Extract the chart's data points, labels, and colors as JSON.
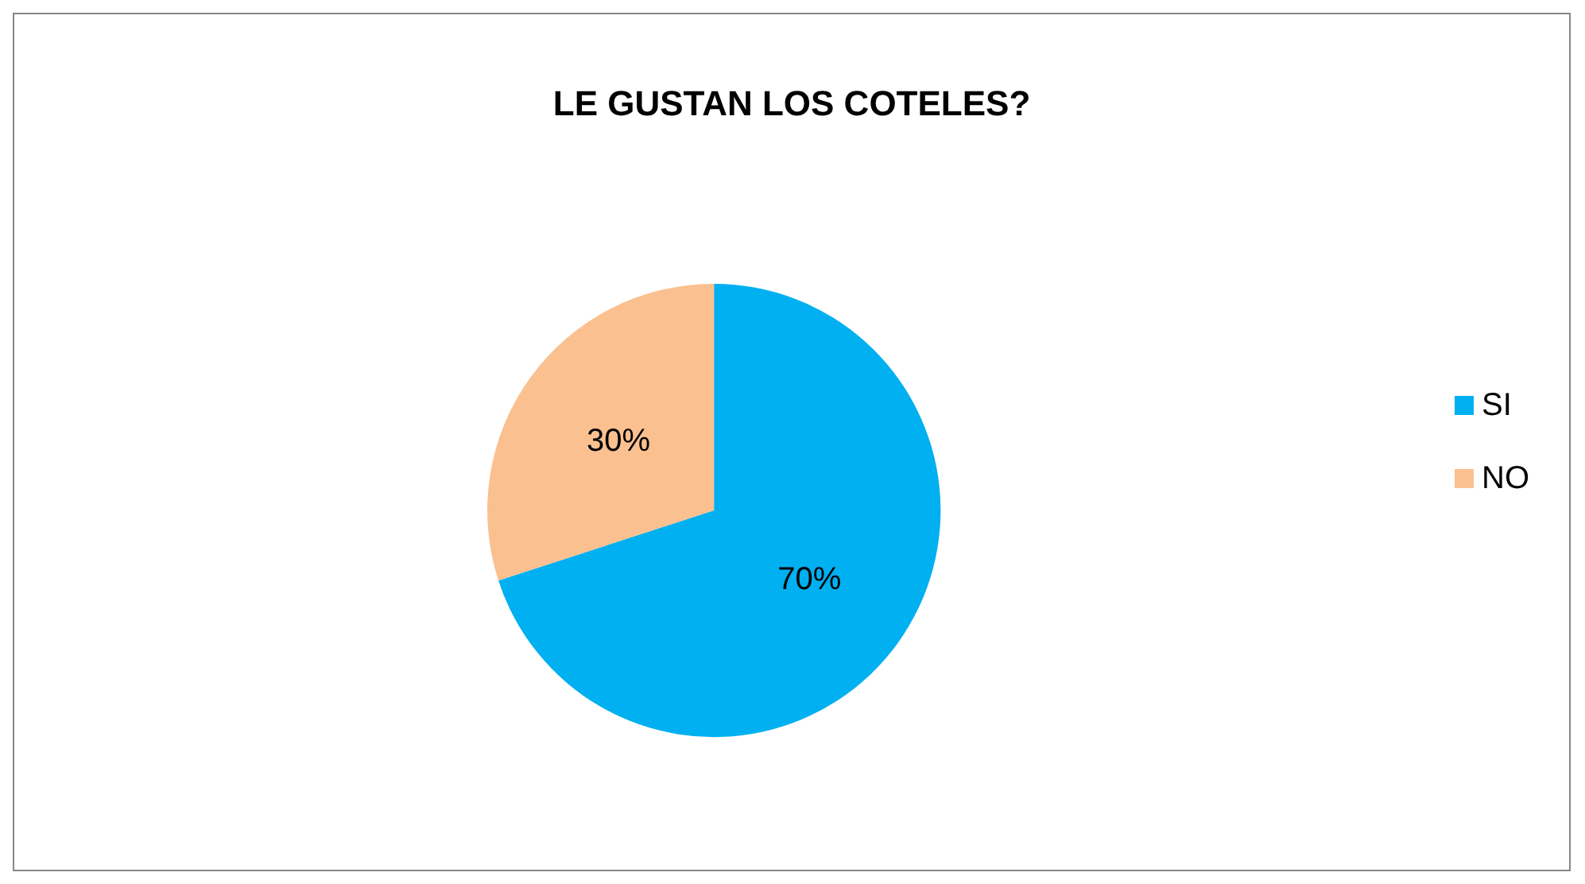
{
  "chart_data": {
    "type": "pie",
    "title": "LE GUSTAN LOS COTELES?",
    "categories": [
      "SI",
      "NO"
    ],
    "values": [
      70,
      30
    ],
    "colors": [
      "#00b0f0",
      "#fac090"
    ],
    "value_labels": [
      "70%",
      "30%"
    ],
    "legend": "right"
  }
}
